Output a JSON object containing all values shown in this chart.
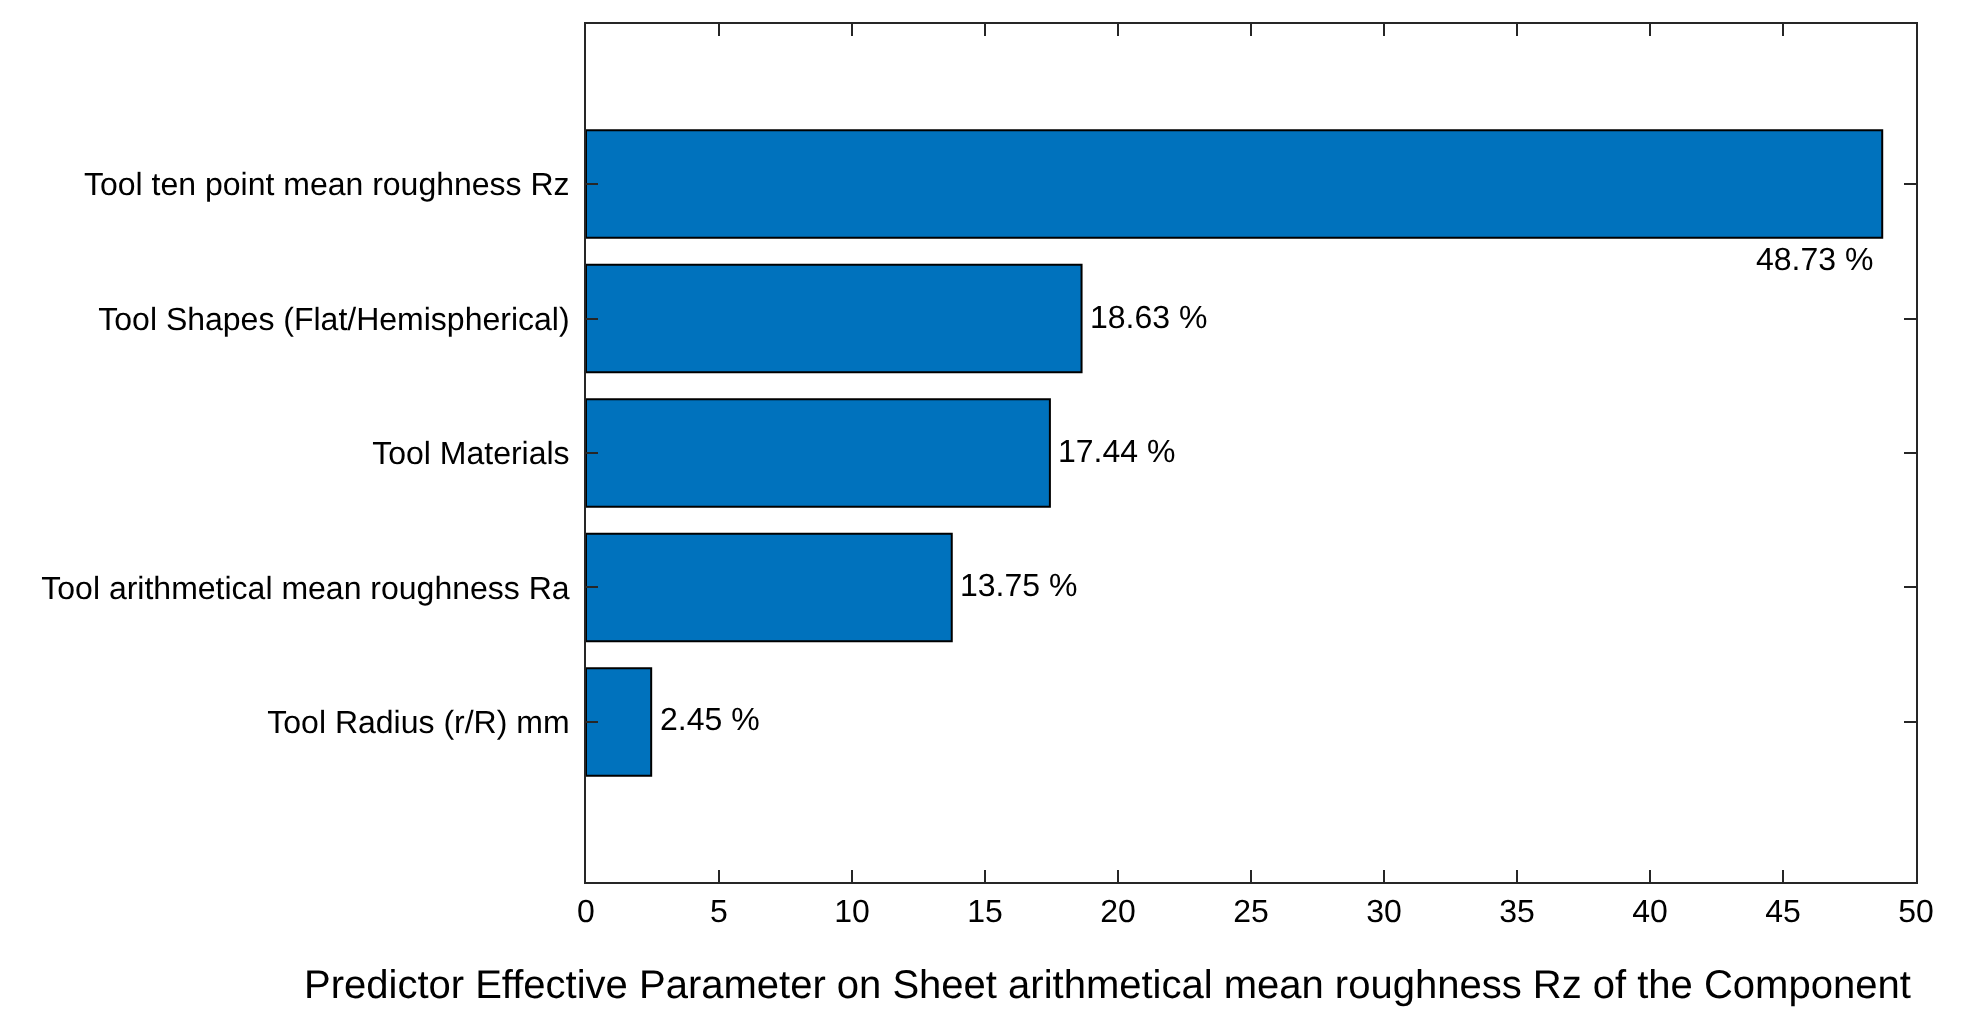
{
  "chart_data": {
    "type": "bar",
    "orientation": "horizontal",
    "categories": [
      "Tool ten point mean roughness Rz",
      "Tool Shapes (Flat/Hemispherical)",
      "Tool Materials",
      "Tool arithmetical mean roughness Ra",
      "Tool Radius (r/R) mm"
    ],
    "values": [
      48.73,
      18.63,
      17.44,
      13.75,
      2.45
    ],
    "value_labels": [
      "48.73 %",
      "18.63 %",
      "17.44 %",
      "13.75 %",
      "2.45 %"
    ],
    "color": "#0072bd",
    "xlim": [
      0,
      50
    ],
    "xticks": [
      0,
      5,
      10,
      15,
      20,
      25,
      30,
      35,
      40,
      45,
      50
    ],
    "xlabel": "Predictor Effective Parameter on Sheet arithmetical mean roughness Rz of the Component"
  }
}
